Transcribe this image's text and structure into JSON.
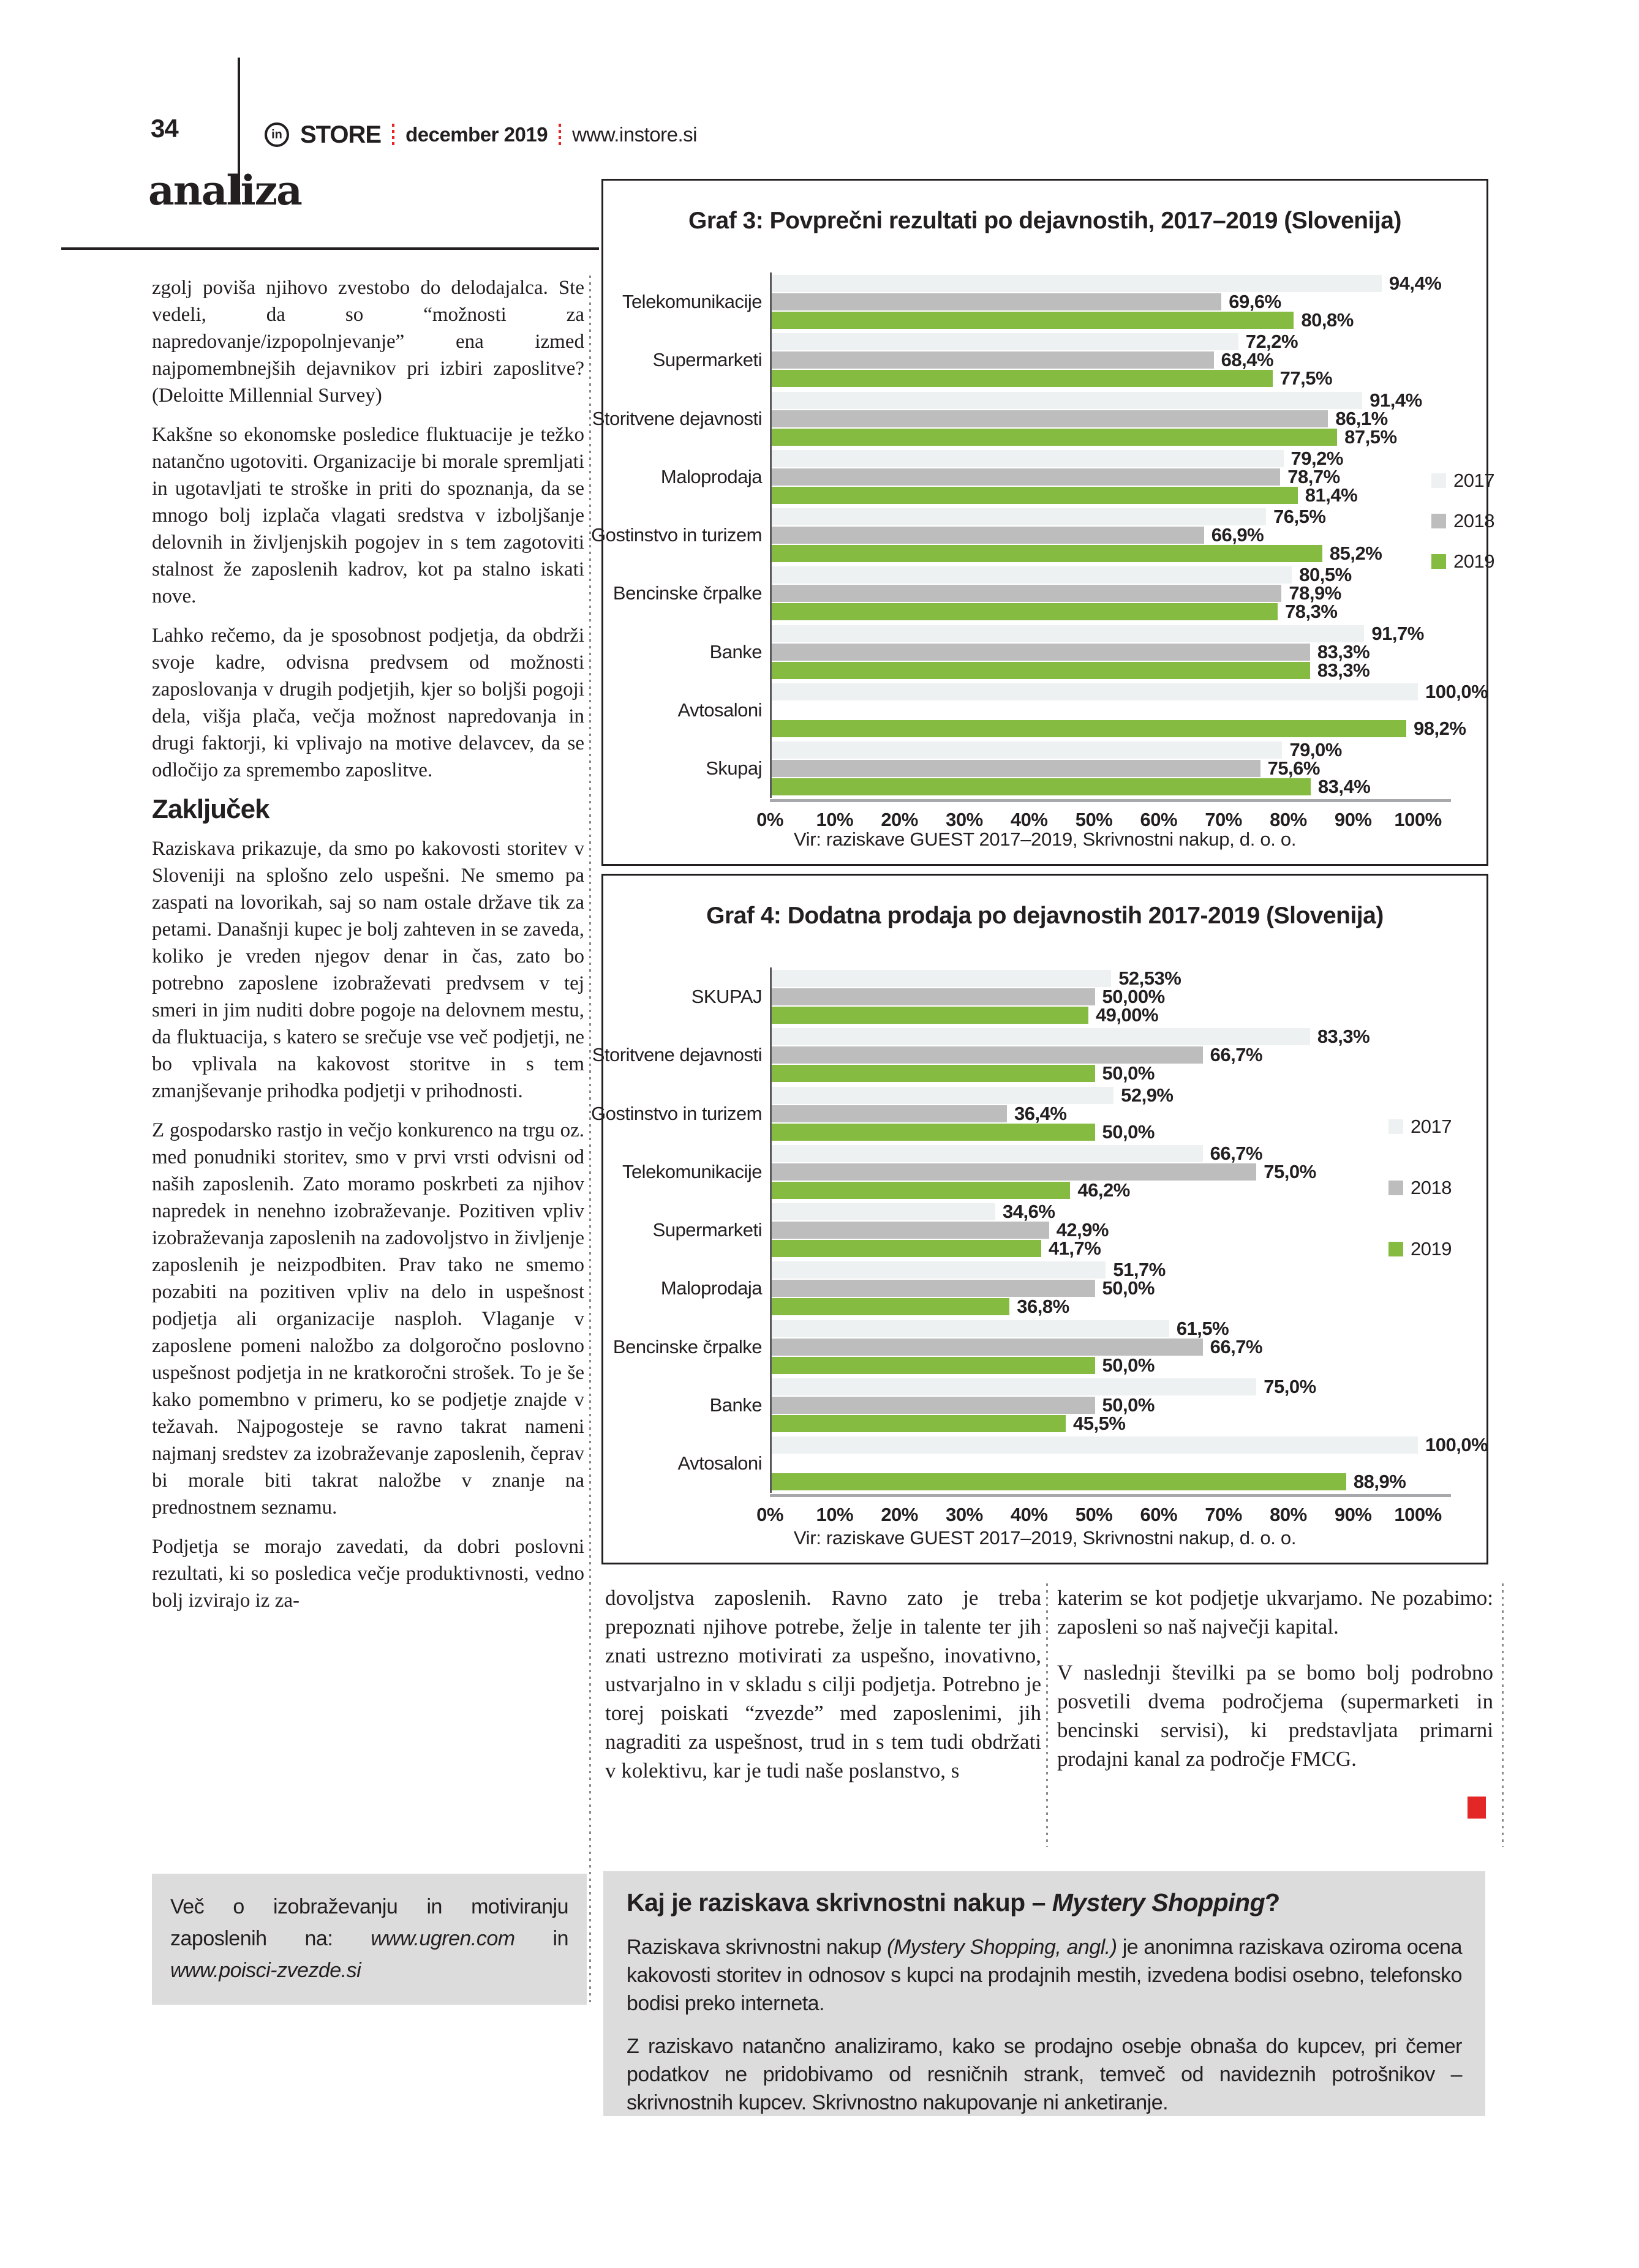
{
  "colors": {
    "ink": "#231f20",
    "accent_red": "#e32726",
    "box_gray": "#dcdcdc",
    "axis_gray": "#a6a8ab",
    "c2017": "#edf1f2",
    "c2018": "#bdbdbd",
    "c2019": "#85bb41"
  },
  "header": {
    "page_number": "34",
    "logo_in": "in",
    "logo_store": "STORE",
    "issue": "december 2019",
    "site": "www.instore.si"
  },
  "section_title": "analiza",
  "article": {
    "col1_p1": "zgolj poviša njihovo zvestobo do delodajalca. Ste vedeli, da so “možnosti za napredovanje/izpopolnjevanje” ena izmed najpomembnejših dejavnikov pri izbiri zaposlitve? (Deloitte Millennial Survey)",
    "col1_p2": "Kakšne so ekonomske posledice fluktuacije je težko natančno ugotoviti. Organizacije bi morale spremljati in ugotavljati te stroške in priti do spoznanja, da se mnogo bolj izplača vlagati sredstva v izboljšanje delovnih in življenjskih pogojev in s tem zagotoviti stalnost že zaposlenih kadrov, kot pa stalno iskati nove.",
    "col1_p3": "Lahko rečemo, da je sposobnost podjetja, da obdrži svoje kadre, odvisna predvsem od možnosti zaposlovanja v drugih podjetjih, kjer so boljši pogoji dela, višja plača, večja možnost napredovanja in drugi faktorji, ki vplivajo na motive delavcev, da se odločijo za spremembo zaposlitve.",
    "conclusion_heading": "Zaključek",
    "col1_p4": "Raziskava prikazuje, da smo po kakovosti storitev v Sloveniji na splošno zelo uspešni. Ne smemo pa zaspati na lovorikah, saj so nam ostale države tik za petami. Današnji kupec je bolj zahteven in se zaveda, koliko je vreden njegov denar in čas, zato bo potrebno zaposlene izobraževati predvsem v tej smeri in jim nuditi dobre pogoje na delovnem mestu, da fluktuacija, s katero se srečuje vse več podjetji, ne bo vplivala na kakovost storitve in s tem zmanjševanje prihodka podjetji v prihodnosti.",
    "col1_p5": "Z gospodarsko rastjo in večjo konkurenco na trgu oz. med ponudniki storitev, smo v prvi vrsti odvisni od naših zaposlenih. Zato moramo poskrbeti za njihov napredek in nenehno izobraževanje. Pozitiven vpliv izobraževanja zaposlenih na zadovoljstvo in življenje zaposlenih je neizpodbiten. Prav tako ne smemo pozabiti na pozitiven vpliv na delo in uspešnost podjetja ali organizacije nasploh. Vlaganje v zaposlene pomeni naložbo za dolgoročno poslovno uspešnost podjetja in ne kratkoročni strošek. To je še kako pomembno v primeru, ko se podjetje znajde v težavah. Najpogosteje se ravno takrat nameni najmanj sredstev za izobraževanje zaposlenih, čeprav bi morale biti takrat naložbe v znanje na prednostnem seznamu.",
    "col1_p6": "Podjetja se morajo zavedati, da dobri poslovni rezultati, ki so posledica večje produktivnosti, vedno bolj izvirajo iz za-",
    "colmid_p1": "dovoljstva zaposlenih. Ravno zato je treba prepoznati njihove potrebe, želje in talente ter jih znati ustrezno motivirati za uspešno, inovativno, ustvarjalno in v skladu s cilji podjetja. Potrebno je torej poiskati “zvezde” med zaposlenimi, jih nagraditi za uspešnost, trud in s tem tudi obdržati v kolektivu, kar je tudi naše poslanstvo, s",
    "colright_p1": "katerim se kot podjetje ukvarjamo. Ne pozabimo: zaposleni so naš največji kapital.",
    "colright_p2": "V naslednji številki pa se bomo bolj podrobno posvetili dvema področjema (supermarketi in bencinski servisi), ki predstavljata primarni prodajni kanal za področje FMCG."
  },
  "info_box": {
    "prefix": "Več o izobraževanju in motiviranju zaposlenih na: ",
    "url1": "www.ugren.com",
    "mid": " in ",
    "url2": "www.poisci-zvezde.si"
  },
  "mystery_box": {
    "title_prefix": "Kaj je raziskava skrivnostni nakup – ",
    "title_italic": "Mystery Shopping",
    "title_suffix": "?",
    "p1_prefix": "Raziskava skrivnostni nakup ",
    "p1_italic": "(Mystery Shopping, angl.)",
    "p1_suffix": " je anonimna raziskava oziroma ocena kakovosti storitev in odnosov s kupci na prodajnih mestih, izvedena bodisi osebno, telefonsko bodisi preko interneta.",
    "p2": "Z raziskavo natančno analiziramo, kako se prodajno osebje obnaša do kupcev, pri čemer podatkov ne pridobivamo od resničnih strank, temveč od navideznih potrošnikov – skrivnostnih kupcev. Skrivnostno nakupovanje ni anketiranje."
  },
  "chart_data": [
    {
      "type": "bar",
      "orientation": "horizontal",
      "title": "Graf 3: Povprečni rezultati po dejavnostih, 2017–2019 (Slovenija)",
      "categories": [
        "Telekomunikacije",
        "Supermarketi",
        "Storitvene dejavnosti",
        "Maloprodaja",
        "Gostinstvo in turizem",
        "Bencinske črpalke",
        "Banke",
        "Avtosaloni",
        "Skupaj"
      ],
      "series": [
        {
          "name": "2017",
          "color": "#edf1f2",
          "values": [
            94.4,
            72.2,
            91.4,
            79.2,
            76.5,
            80.5,
            91.7,
            100.0,
            79.0
          ]
        },
        {
          "name": "2018",
          "color": "#bdbdbd",
          "values": [
            69.6,
            68.4,
            86.1,
            78.7,
            66.9,
            78.9,
            83.3,
            null,
            75.6
          ]
        },
        {
          "name": "2019",
          "color": "#85bb41",
          "values": [
            80.8,
            77.5,
            87.5,
            81.4,
            85.2,
            78.3,
            83.3,
            98.2,
            83.4
          ]
        }
      ],
      "value_labels": [
        [
          "94,4%",
          "69,6%",
          "80,8%"
        ],
        [
          "72,2%",
          "68,4%",
          "77,5%"
        ],
        [
          "91,4%",
          "86,1%",
          "87,5%"
        ],
        [
          "79,2%",
          "78,7%",
          "81,4%"
        ],
        [
          "76,5%",
          "66,9%",
          "85,2%"
        ],
        [
          "80,5%",
          "78,9%",
          "78,3%"
        ],
        [
          "91,7%",
          "83,3%",
          "83,3%"
        ],
        [
          "100,0%",
          null,
          "98,2%"
        ],
        [
          "79,0%",
          "75,6%",
          "83,4%"
        ]
      ],
      "x_ticks": [
        "0%",
        "10%",
        "20%",
        "30%",
        "40%",
        "50%",
        "60%",
        "70%",
        "80%",
        "90%",
        "100%"
      ],
      "xlim": [
        0,
        100
      ],
      "legend_position": "right",
      "grid": false,
      "source": "Vir: raziskave GUEST 2017–2019, Skrivnostni nakup, d. o. o."
    },
    {
      "type": "bar",
      "orientation": "horizontal",
      "title": "Graf 4: Dodatna prodaja po dejavnostih 2017-2019 (Slovenija)",
      "categories": [
        "SKUPAJ",
        "Storitvene dejavnosti",
        "Gostinstvo in turizem",
        "Telekomunikacije",
        "Supermarketi",
        "Maloprodaja",
        "Bencinske črpalke",
        "Banke",
        "Avtosaloni"
      ],
      "series": [
        {
          "name": "2017",
          "color": "#edf1f2",
          "values": [
            52.53,
            83.3,
            52.9,
            66.7,
            34.6,
            51.7,
            61.5,
            75.0,
            100.0
          ]
        },
        {
          "name": "2018",
          "color": "#bdbdbd",
          "values": [
            50.0,
            66.7,
            36.4,
            75.0,
            42.9,
            50.0,
            66.7,
            50.0,
            null
          ]
        },
        {
          "name": "2019",
          "color": "#85bb41",
          "values": [
            49.0,
            50.0,
            50.0,
            46.2,
            41.7,
            36.8,
            50.0,
            45.5,
            88.9
          ]
        }
      ],
      "value_labels": [
        [
          "52,53%",
          "50,00%",
          "49,00%"
        ],
        [
          "83,3%",
          "66,7%",
          "50,0%"
        ],
        [
          "52,9%",
          "36,4%",
          "50,0%"
        ],
        [
          "66,7%",
          "75,0%",
          "46,2%"
        ],
        [
          "34,6%",
          "42,9%",
          "41,7%"
        ],
        [
          "51,7%",
          "50,0%",
          "36,8%"
        ],
        [
          "61,5%",
          "66,7%",
          "50,0%"
        ],
        [
          "75,0%",
          "50,0%",
          "45,5%"
        ],
        [
          "100,0%",
          null,
          "88,9%"
        ]
      ],
      "x_ticks": [
        "0%",
        "10%",
        "20%",
        "30%",
        "40%",
        "50%",
        "60%",
        "70%",
        "80%",
        "90%",
        "100%"
      ],
      "xlim": [
        0,
        100
      ],
      "legend_position": "right",
      "grid": false,
      "source": "Vir: raziskave GUEST 2017–2019, Skrivnostni nakup, d. o. o."
    }
  ]
}
